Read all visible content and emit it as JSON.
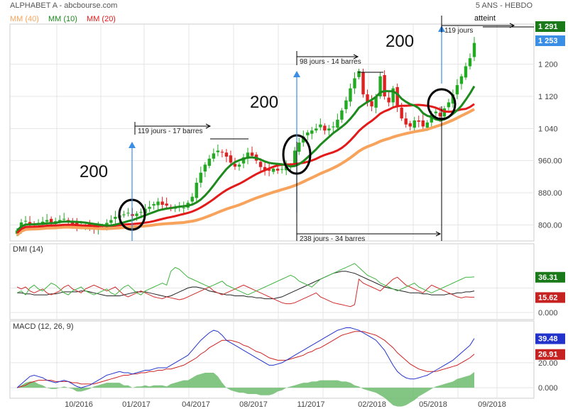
{
  "header": {
    "title": "ALPHABET A - abcbourse.com",
    "period": "5 ANS - HEBDO"
  },
  "legend": [
    {
      "label": "MM (40)",
      "color": "#f7a35c"
    },
    {
      "label": "MM (10)",
      "color": "#1e8a1e"
    },
    {
      "label": "MM (20)",
      "color": "#e31a1a"
    }
  ],
  "colors": {
    "up": "#22aa22",
    "down": "#dd2222",
    "ma10": "#1e8a1e",
    "ma20": "#e31a1a",
    "ma40": "#f7a35c",
    "arrow": "#3a8ee6",
    "dmi_plus": "#3fb53f",
    "dmi_minus": "#d12a2a",
    "adx": "#222222",
    "macd": "#2233cc",
    "signal": "#cc2222",
    "hist": "#6dbb6d",
    "price_badge_last": "#3a8ee6",
    "price_badge_target": "#1a7a1a"
  },
  "chart_data": [
    {
      "type": "candlestick",
      "panel": "price",
      "x_ticks": [
        "10/2016",
        "01/2017",
        "04/2017",
        "08/2017",
        "11/2017",
        "02/2018",
        "05/2018",
        "09/2018"
      ],
      "y_ticks": [
        "800.00",
        "880.00",
        "960.00",
        "1 040",
        "1 120",
        "1 200"
      ],
      "ylim": [
        760,
        1300
      ],
      "price_labels": {
        "target": "1 291",
        "last": "1 253"
      },
      "annotations": {
        "numbers": [
          "200",
          "200",
          "200"
        ],
        "spans": [
          "119 jours - 17 barres",
          "98 jours - 14 barres",
          "238 jours - 34 barres",
          "119 jours"
        ],
        "target_label": "atteint"
      },
      "weeks": 108,
      "close": [
        786,
        806,
        810,
        803,
        802,
        805,
        808,
        812,
        806,
        809,
        812,
        815,
        808,
        802,
        798,
        795,
        800,
        795,
        790,
        793,
        797,
        805,
        812,
        820,
        824,
        826,
        830,
        822,
        828,
        832,
        840,
        845,
        852,
        858,
        850,
        848,
        842,
        842,
        845,
        843,
        855,
        870,
        905,
        930,
        950,
        965,
        978,
        985,
        980,
        970,
        955,
        945,
        950,
        968,
        980,
        972,
        960,
        944,
        935,
        935,
        940,
        935,
        939,
        945,
        948,
        985,
        1005,
        1020,
        1030,
        1035,
        1040,
        1050,
        1035,
        1040,
        1045,
        1062,
        1085,
        1110,
        1140,
        1165,
        1183,
        1125,
        1105,
        1095,
        1120,
        1170,
        1120,
        1105,
        1140,
        1095,
        1065,
        1050,
        1045,
        1060,
        1057,
        1045,
        1055,
        1075,
        1082,
        1070,
        1090,
        1105,
        1125,
        1148,
        1170,
        1195,
        1215,
        1253
      ],
      "ma10_end": 1155,
      "ma20_end": 1105,
      "ma40_end": 1085
    },
    {
      "type": "line",
      "panel": "DMI (14)",
      "y_ticks": [
        "0.000"
      ],
      "ylim": [
        0,
        60
      ],
      "series_labels": {
        "plus": "36.31",
        "minus": "15.62"
      },
      "plus": [
        20,
        22,
        18,
        25,
        28,
        24,
        22,
        26,
        30,
        28,
        24,
        20,
        18,
        22,
        24,
        26,
        22,
        20,
        18,
        20,
        22,
        24,
        20,
        18,
        22,
        26,
        28,
        24,
        20,
        18,
        22,
        24,
        26,
        28,
        30,
        28,
        42,
        46,
        44,
        40,
        36,
        34,
        32,
        30,
        28,
        26,
        28,
        30,
        32,
        28,
        26,
        24,
        22,
        20,
        18,
        20,
        22,
        24,
        26,
        28,
        30,
        32,
        34,
        36,
        38,
        36,
        32,
        30,
        28,
        26,
        30,
        34,
        36,
        38,
        40,
        42,
        44,
        46,
        48,
        50,
        46,
        42,
        38,
        36,
        34,
        30,
        28,
        26,
        24,
        22,
        24,
        26,
        28,
        30,
        26,
        24,
        22,
        20,
        22,
        24,
        26,
        28,
        30,
        32,
        34,
        36,
        36,
        36.31
      ],
      "minus": [
        26,
        24,
        26,
        22,
        20,
        22,
        24,
        20,
        18,
        20,
        22,
        26,
        28,
        24,
        22,
        20,
        24,
        26,
        28,
        26,
        24,
        22,
        24,
        26,
        22,
        18,
        16,
        18,
        20,
        22,
        20,
        18,
        16,
        15,
        14,
        16,
        15,
        14,
        13,
        14,
        16,
        18,
        20,
        22,
        24,
        26,
        22,
        20,
        18,
        20,
        22,
        24,
        26,
        28,
        26,
        24,
        22,
        20,
        18,
        16,
        14,
        12,
        10,
        9,
        9,
        10,
        12,
        14,
        16,
        18,
        20,
        16,
        14,
        12,
        10,
        9,
        8,
        7,
        6,
        8,
        34,
        30,
        28,
        26,
        24,
        22,
        26,
        30,
        34,
        36,
        32,
        28,
        26,
        24,
        22,
        20,
        24,
        28,
        26,
        24,
        22,
        20,
        18,
        16,
        15,
        16,
        15.62,
        15.62
      ],
      "adx": [
        20,
        20,
        19,
        19,
        18,
        18,
        18,
        18,
        19,
        19,
        20,
        21,
        21,
        21,
        21,
        22,
        22,
        21,
        20,
        19,
        18,
        17,
        17,
        17,
        17,
        18,
        19,
        20,
        21,
        21,
        21,
        20,
        19,
        18,
        17,
        16,
        17,
        19,
        21,
        23,
        25,
        26,
        26,
        25,
        24,
        22,
        21,
        20,
        19,
        18,
        18,
        17,
        17,
        17,
        16,
        16,
        15,
        15,
        14,
        14,
        14,
        15,
        16,
        18,
        20,
        22,
        24,
        26,
        28,
        30,
        32,
        34,
        36,
        38,
        40,
        41,
        42,
        42,
        41,
        40,
        38,
        36,
        34,
        32,
        30,
        28,
        26,
        25,
        24,
        23,
        22,
        21,
        20,
        20,
        20,
        19,
        19,
        18,
        18,
        18,
        18,
        19,
        19,
        20,
        20,
        21,
        21,
        22
      ]
    },
    {
      "type": "line",
      "panel": "MACD (12, 26, 9)",
      "y_ticks": [
        "0.000",
        "20.00"
      ],
      "ylim": [
        -5,
        50
      ],
      "series_labels": {
        "macd": "39.48",
        "signal": "26.91"
      },
      "macd": [
        0,
        3,
        6,
        9,
        10,
        9,
        8,
        6,
        5,
        4,
        5,
        6,
        5,
        3,
        1,
        0,
        1,
        2,
        4,
        6,
        8,
        10,
        11,
        12,
        13,
        12,
        12,
        11,
        12,
        13,
        14,
        14,
        15,
        16,
        16,
        16,
        18,
        20,
        22,
        24,
        26,
        30,
        34,
        38,
        41,
        44,
        46,
        45,
        42,
        38,
        36,
        34,
        32,
        30,
        28,
        26,
        24,
        22,
        20,
        18,
        18,
        19,
        20,
        22,
        24,
        26,
        28,
        30,
        32,
        34,
        36,
        38,
        40,
        42,
        44,
        46,
        47,
        48,
        48,
        47,
        46,
        44,
        42,
        40,
        38,
        34,
        30,
        24,
        18,
        13,
        10,
        8,
        7,
        7,
        8,
        9,
        10,
        12,
        14,
        16,
        18,
        20,
        22,
        25,
        28,
        31,
        34,
        39.48
      ],
      "signal": [
        0,
        1,
        2,
        4,
        5,
        6,
        6,
        6,
        6,
        5,
        5,
        5,
        5,
        4,
        4,
        3,
        3,
        3,
        3,
        4,
        5,
        6,
        7,
        8,
        9,
        10,
        10,
        11,
        11,
        12,
        12,
        13,
        13,
        14,
        14,
        15,
        15,
        16,
        17,
        18,
        20,
        22,
        24,
        27,
        29,
        32,
        34,
        36,
        38,
        38,
        38,
        37,
        36,
        34,
        33,
        31,
        29,
        28,
        26,
        24,
        23,
        22,
        22,
        22,
        23,
        24,
        25,
        26,
        28,
        29,
        31,
        32,
        34,
        36,
        38,
        40,
        42,
        43,
        44,
        45,
        45,
        45,
        44,
        43,
        42,
        40,
        38,
        35,
        32,
        28,
        25,
        22,
        19,
        17,
        15,
        14,
        13,
        13,
        13,
        14,
        15,
        16,
        17,
        18,
        20,
        22,
        24,
        26.91
      ]
    }
  ]
}
